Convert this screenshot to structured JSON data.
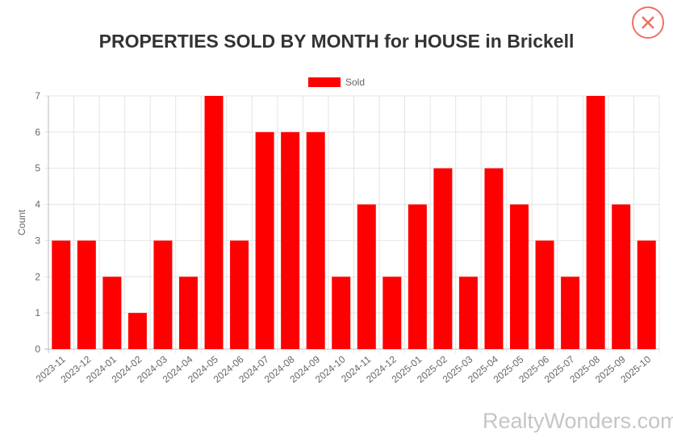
{
  "watermark": "RealtyWonders.com",
  "close_icon": "close-x-icon",
  "colors": {
    "bar": "#ff0000",
    "close": "#f07060"
  },
  "chart_data": {
    "type": "bar",
    "title": "PROPERTIES SOLD BY MONTH for HOUSE in Brickell",
    "ylabel": "Count",
    "xlabel": "",
    "ylim": [
      0,
      7
    ],
    "grid": true,
    "legend": "top",
    "categories": [
      "2023-11",
      "2023-12",
      "2024-01",
      "2024-02",
      "2024-03",
      "2024-04",
      "2024-05",
      "2024-06",
      "2024-07",
      "2024-08",
      "2024-09",
      "2024-10",
      "2024-11",
      "2024-12",
      "2025-01",
      "2025-02",
      "2025-03",
      "2025-04",
      "2025-05",
      "2025-06",
      "2025-07",
      "2025-08",
      "2025-09",
      "2025-10"
    ],
    "series": [
      {
        "name": "Sold",
        "values": [
          3,
          3,
          2,
          1,
          3,
          2,
          7,
          3,
          6,
          6,
          6,
          2,
          4,
          2,
          4,
          5,
          2,
          5,
          4,
          3,
          2,
          7,
          4,
          3
        ]
      }
    ],
    "yticks": [
      "0",
      "1",
      "2",
      "3",
      "4",
      "5",
      "6",
      "7"
    ]
  }
}
